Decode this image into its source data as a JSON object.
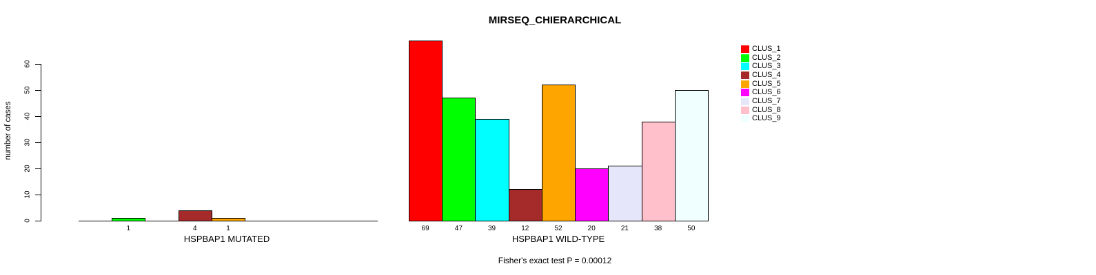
{
  "chart_data": {
    "type": "bar",
    "title": "MIRSEQ_CHIERARCHICAL",
    "ylabel": "number of cases",
    "ylim": [
      0,
      60
    ],
    "y_ticks": [
      0,
      10,
      20,
      30,
      40,
      50,
      60
    ],
    "grid": false,
    "legend_position": "right",
    "categories": [
      "CLUS_1",
      "CLUS_2",
      "CLUS_3",
      "CLUS_4",
      "CLUS_5",
      "CLUS_6",
      "CLUS_7",
      "CLUS_8",
      "CLUS_9"
    ],
    "colors": [
      "#FF0000",
      "#00FF00",
      "#00FFFF",
      "#A52A2A",
      "#FFA500",
      "#FF00FF",
      "#E6E6FA",
      "#FFC0CB",
      "#F0FFFF"
    ],
    "series": [
      {
        "name": "HSPBAP1 MUTATED",
        "values": [
          0,
          1,
          0,
          4,
          1,
          0,
          0,
          0,
          0
        ]
      },
      {
        "name": "HSPBAP1 WILD-TYPE",
        "values": [
          69,
          47,
          39,
          12,
          52,
          20,
          21,
          38,
          50
        ]
      }
    ],
    "bar_value_labels_shown_for_nonzero": true,
    "annotation": "Fisher's exact test P = 0.00012"
  }
}
